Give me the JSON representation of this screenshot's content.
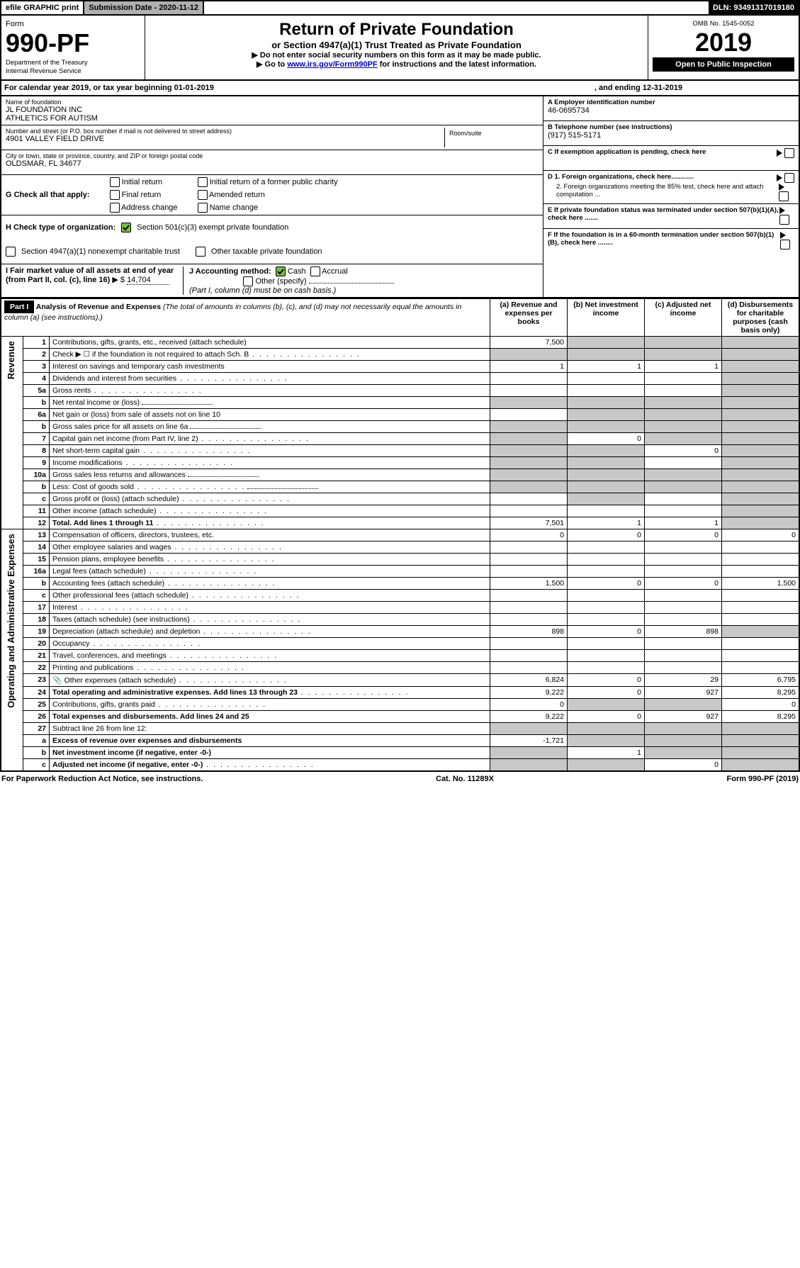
{
  "topbar": {
    "efile": "efile GRAPHIC print",
    "sub": "Submission Date - 2020-11-12",
    "dln": "DLN: 93491317019180"
  },
  "header": {
    "formword": "Form",
    "form": "990-PF",
    "dept": "Department of the Treasury",
    "irs": "Internal Revenue Service",
    "title": "Return of Private Foundation",
    "subtitle": "or Section 4947(a)(1) Trust Treated as Private Foundation",
    "warn": "▶ Do not enter social security numbers on this form as it may be made public.",
    "goto": "▶ Go to ",
    "gotolink": "www.irs.gov/Form990PF",
    "goto2": " for instructions and the latest information.",
    "omb": "OMB No. 1545-0052",
    "year": "2019",
    "open": "Open to Public Inspection"
  },
  "cal": {
    "text": "For calendar year 2019, or tax year beginning 01-01-2019",
    "end": ", and ending 12-31-2019"
  },
  "ident": {
    "name_lbl": "Name of foundation",
    "name1": "JL FOUNDATION INC",
    "name2": "ATHLETICS FOR AUTISM",
    "addr_lbl": "Number and street (or P.O. box number if mail is not delivered to street address)",
    "addr": "4901 VALLEY FIELD DRIVE",
    "room_lbl": "Room/suite",
    "room": "",
    "city_lbl": "City or town, state or province, country, and ZIP or foreign postal code",
    "city": "OLDSMAR, FL  34677",
    "A_lbl": "A Employer identification number",
    "A": "46-0695734",
    "B_lbl": "B Telephone number (see instructions)",
    "B": "(917) 515-5171",
    "C_lbl": "C If exemption application is pending, check here",
    "D1": "D 1. Foreign organizations, check here............",
    "D2": "2. Foreign organizations meeting the 85% test, check here and attach computation ...",
    "E": "E  If private foundation status was terminated under section 507(b)(1)(A), check here .......",
    "F": "F  If the foundation is in a 60-month termination under section 507(b)(1)(B), check here ........"
  },
  "G": {
    "label": "G Check all that apply:",
    "opts": [
      "Initial return",
      "Final return",
      "Address change",
      "Initial return of a former public charity",
      "Amended return",
      "Name change"
    ]
  },
  "H": {
    "label": "H Check type of organization:",
    "o1": "Section 501(c)(3) exempt private foundation",
    "o2": "Section 4947(a)(1) nonexempt charitable trust",
    "o3": "Other taxable private foundation"
  },
  "I": {
    "label": "I Fair market value of all assets at end of year (from Part II, col. (c), line 16)",
    "amt": "14,704"
  },
  "J": {
    "label": "J Accounting method:",
    "o1": "Cash",
    "o2": "Accrual",
    "o3": "Other (specify)",
    "note": "(Part I, column (d) must be on cash basis.)"
  },
  "part1": {
    "hdr": "Part I",
    "title": "Analysis of Revenue and Expenses",
    "sub": "(The total of amounts in columns (b), (c), and (d) may not necessarily equal the amounts in column (a) (see instructions).)",
    "cols": [
      "(a) Revenue and expenses per books",
      "(b) Net investment income",
      "(c) Adjusted net income",
      "(d) Disbursements for charitable purposes (cash basis only)"
    ],
    "revhdr": "Revenue",
    "exphdr": "Operating and Administrative Expenses"
  },
  "rows": [
    {
      "n": "1",
      "d": "Contributions, gifts, grants, etc., received (attach schedule)",
      "a": "7,500",
      "sh": [
        "b",
        "c",
        "d"
      ]
    },
    {
      "n": "2",
      "d": "Check ▶ ☐ if the foundation is not required to attach Sch. B",
      "dots": 1,
      "sh": [
        "a",
        "b",
        "c",
        "d"
      ]
    },
    {
      "n": "3",
      "d": "Interest on savings and temporary cash investments",
      "a": "1",
      "b": "1",
      "c": "1",
      "sh": [
        "d"
      ]
    },
    {
      "n": "4",
      "d": "Dividends and interest from securities",
      "dots": 1,
      "sh": [
        "d"
      ]
    },
    {
      "n": "5a",
      "d": "Gross rents",
      "dots": 1,
      "sh": [
        "d"
      ]
    },
    {
      "n": "b",
      "d": "Net rental income or (loss)",
      "line": 1,
      "sh": [
        "a",
        "b",
        "c",
        "d"
      ]
    },
    {
      "n": "6a",
      "d": "Net gain or (loss) from sale of assets not on line 10",
      "sh": [
        "b",
        "c",
        "d"
      ]
    },
    {
      "n": "b",
      "d": "Gross sales price for all assets on line 6a",
      "line": 1,
      "sh": [
        "a",
        "b",
        "c",
        "d"
      ]
    },
    {
      "n": "7",
      "d": "Capital gain net income (from Part IV, line 2)",
      "dots": 1,
      "b": "0",
      "sh": [
        "a",
        "c",
        "d"
      ]
    },
    {
      "n": "8",
      "d": "Net short-term capital gain",
      "dots": 1,
      "c": "0",
      "sh": [
        "a",
        "b",
        "d"
      ]
    },
    {
      "n": "9",
      "d": "Income modifications",
      "dots": 1,
      "sh": [
        "a",
        "b",
        "d"
      ]
    },
    {
      "n": "10a",
      "d": "Gross sales less returns and allowances",
      "line": 1,
      "sh": [
        "a",
        "b",
        "c",
        "d"
      ]
    },
    {
      "n": "b",
      "d": "Less: Cost of goods sold",
      "dots": 1,
      "line": 1,
      "sh": [
        "a",
        "b",
        "c",
        "d"
      ]
    },
    {
      "n": "c",
      "d": "Gross profit or (loss) (attach schedule)",
      "dots": 1,
      "sh": [
        "b",
        "d"
      ]
    },
    {
      "n": "11",
      "d": "Other income (attach schedule)",
      "dots": 1,
      "sh": [
        "d"
      ]
    },
    {
      "n": "12",
      "d": "Total. Add lines 1 through 11",
      "dots": 1,
      "bold": 1,
      "a": "7,501",
      "b": "1",
      "c": "1",
      "sh": [
        "d"
      ]
    },
    {
      "n": "13",
      "d": "Compensation of officers, directors, trustees, etc.",
      "a": "0",
      "b": "0",
      "c": "0",
      "dcol": "0"
    },
    {
      "n": "14",
      "d": "Other employee salaries and wages",
      "dots": 1
    },
    {
      "n": "15",
      "d": "Pension plans, employee benefits",
      "dots": 1
    },
    {
      "n": "16a",
      "d": "Legal fees (attach schedule)",
      "dots": 1
    },
    {
      "n": "b",
      "d": "Accounting fees (attach schedule)",
      "dots": 1,
      "a": "1,500",
      "b": "0",
      "c": "0",
      "dcol": "1,500"
    },
    {
      "n": "c",
      "d": "Other professional fees (attach schedule)",
      "dots": 1
    },
    {
      "n": "17",
      "d": "Interest",
      "dots": 1
    },
    {
      "n": "18",
      "d": "Taxes (attach schedule) (see instructions)",
      "dots": 1
    },
    {
      "n": "19",
      "d": "Depreciation (attach schedule) and depletion",
      "dots": 1,
      "a": "898",
      "b": "0",
      "c": "898",
      "sh": [
        "d"
      ]
    },
    {
      "n": "20",
      "d": "Occupancy",
      "dots": 1
    },
    {
      "n": "21",
      "d": "Travel, conferences, and meetings",
      "dots": 1
    },
    {
      "n": "22",
      "d": "Printing and publications",
      "dots": 1
    },
    {
      "n": "23",
      "d": "Other expenses (attach schedule)",
      "dots": 1,
      "icon": 1,
      "a": "6,824",
      "b": "0",
      "c": "29",
      "dcol": "6,795"
    },
    {
      "n": "24",
      "d": "Total operating and administrative expenses. Add lines 13 through 23",
      "dots": 1,
      "bold": 1,
      "a": "9,222",
      "b": "0",
      "c": "927",
      "dcol": "8,295"
    },
    {
      "n": "25",
      "d": "Contributions, gifts, grants paid",
      "dots": 1,
      "a": "0",
      "dcol": "0",
      "sh": [
        "b",
        "c"
      ]
    },
    {
      "n": "26",
      "d": "Total expenses and disbursements. Add lines 24 and 25",
      "bold": 1,
      "a": "9,222",
      "b": "0",
      "c": "927",
      "dcol": "8,295"
    },
    {
      "n": "27",
      "d": "Subtract line 26 from line 12:",
      "sh": [
        "a",
        "b",
        "c",
        "d"
      ]
    },
    {
      "n": "a",
      "d": "Excess of revenue over expenses and disbursements",
      "bold": 1,
      "a": "-1,721",
      "sh": [
        "b",
        "c",
        "d"
      ]
    },
    {
      "n": "b",
      "d": "Net investment income (if negative, enter -0-)",
      "bold": 1,
      "b": "1",
      "sh": [
        "a",
        "c",
        "d"
      ]
    },
    {
      "n": "c",
      "d": "Adjusted net income (if negative, enter -0-)",
      "bold": 1,
      "dots": 1,
      "c": "0",
      "sh": [
        "a",
        "b",
        "d"
      ]
    }
  ],
  "footer": {
    "l": "For Paperwork Reduction Act Notice, see instructions.",
    "c": "Cat. No. 11289X",
    "r": "Form 990-PF (2019)"
  }
}
